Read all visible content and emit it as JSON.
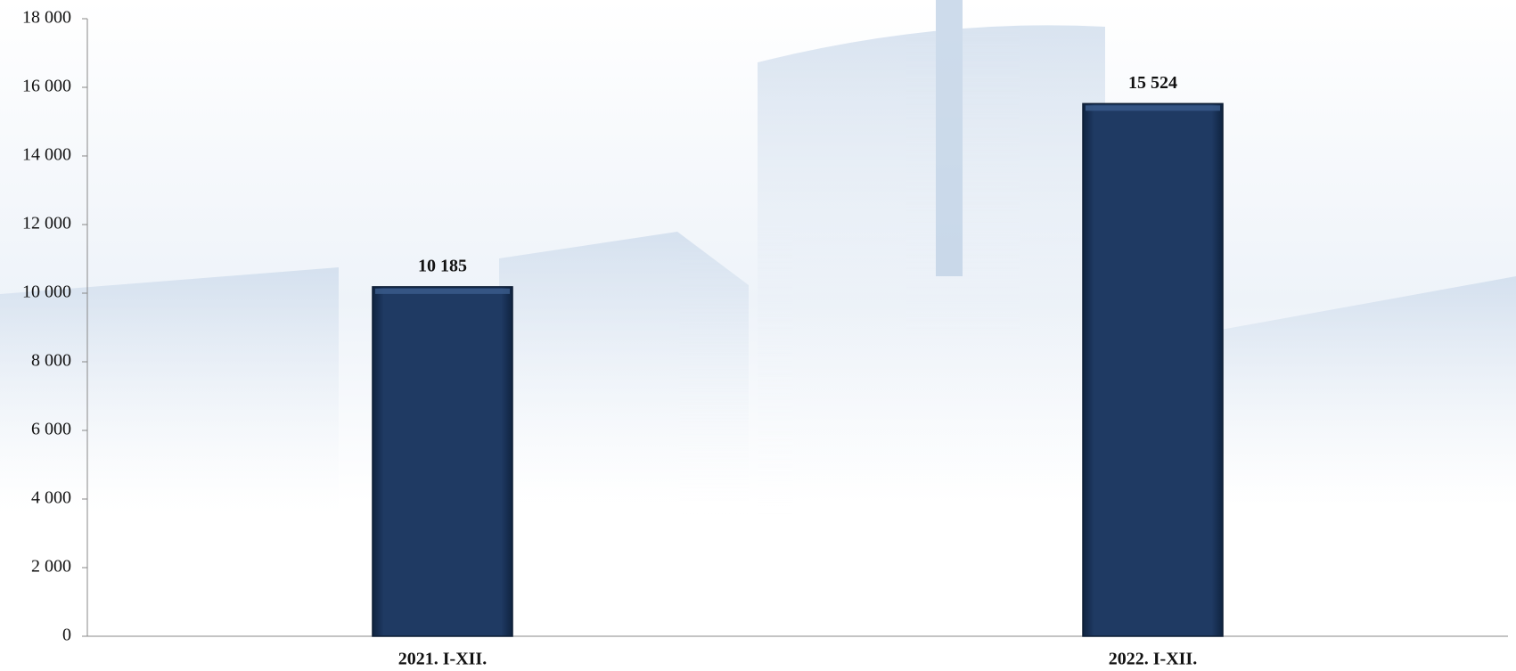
{
  "chart_data": {
    "type": "bar",
    "categories": [
      "2021. I-XII.",
      "2022. I-XII."
    ],
    "values": [
      10185,
      15524
    ],
    "value_labels": [
      "10 185",
      "15 524"
    ],
    "color": "#1f3a63",
    "ylim": [
      0,
      18000
    ],
    "yticks": [
      0,
      {
        "value": 2000,
        "label": "2 000"
      },
      {
        "value": 4000,
        "label": "4 000"
      },
      {
        "value": 6000,
        "label": "6 000"
      },
      {
        "value": 8000,
        "label": "8 000"
      },
      {
        "value": 10000,
        "label": "10 000"
      },
      {
        "value": 12000,
        "label": "12 000"
      },
      {
        "value": 14000,
        "label": "14 000"
      },
      {
        "value": 16000,
        "label": "16 000"
      },
      {
        "value": 18000,
        "label": "18 000"
      }
    ],
    "grid": false
  }
}
